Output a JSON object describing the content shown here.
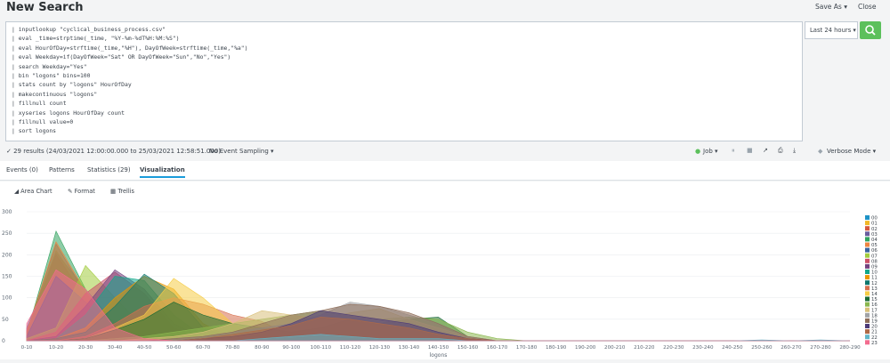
{
  "header": {
    "title": "New Search",
    "save_as": "Save As ▾",
    "close": "Close"
  },
  "search": {
    "lines": [
      "| inputlookup \"cyclical_business_process.csv\"",
      "| eval _time=strptime(_time, \"%Y-%m-%dT%H:%M:%S\")",
      "| eval HourOfDay=strftime(_time,\"%H\"), DayOfWeek=strftime(_time,\"%a\")",
      "| eval Weekday=if(DayOfWeek=\"Sat\" OR DayOfWeek=\"Sun\",\"No\",\"Yes\")",
      "| search Weekday=\"Yes\"",
      "| bin \"logons\" bins=100",
      "| stats count by \"logons\" HourOfDay",
      "| makecontinuous \"logons\"",
      "| fillnull count",
      "| xyseries logons HourOfDay count",
      "| fillnull value=0",
      "| sort logons"
    ],
    "time_range": "Last 24 hours ▾"
  },
  "status": {
    "results": "✓ 29 results (24/03/2021 12:00:00.000 to 25/03/2021 12:58:51.000)",
    "sampling": "No Event Sampling ▾",
    "job": "Job ▾",
    "mode": "Verbose Mode ▾"
  },
  "tabs": [
    {
      "label": "Events (0)"
    },
    {
      "label": "Patterns"
    },
    {
      "label": "Statistics (29)"
    },
    {
      "label": "Visualization"
    }
  ],
  "viz_toolbar": {
    "chart_type": "Area Chart",
    "format": "Format",
    "trellis": "Trellis"
  },
  "colors": {
    "accent_green": "#5cc05c",
    "active_tab": "#1a9cdb"
  },
  "chart_data": {
    "type": "area",
    "xlabel": "logons",
    "ylabel": "",
    "ylim": [
      0,
      300
    ],
    "yticks": [
      0,
      50,
      100,
      150,
      200,
      250,
      300
    ],
    "categories": [
      "0-10",
      "10-20",
      "20-30",
      "30-40",
      "40-50",
      "50-60",
      "60-70",
      "70-80",
      "80-90",
      "90-100",
      "100-110",
      "110-120",
      "120-130",
      "130-140",
      "140-150",
      "150-160",
      "160-170",
      "170-180",
      "180-190",
      "190-200",
      "200-210",
      "210-220",
      "220-230",
      "230-240",
      "240-250",
      "250-260",
      "260-270",
      "270-280",
      "280-290"
    ],
    "series": [
      {
        "name": "00",
        "color": "#1e93c6",
        "values": [
          30,
          205,
          120,
          40,
          5,
          0,
          0,
          0,
          0,
          0,
          0,
          0,
          0,
          0,
          0,
          0,
          0,
          0,
          0,
          0,
          0,
          0,
          0,
          0,
          0,
          0,
          0,
          0,
          0
        ]
      },
      {
        "name": "01",
        "color": "#f2b827",
        "values": [
          20,
          210,
          110,
          30,
          5,
          0,
          0,
          0,
          0,
          0,
          0,
          0,
          0,
          0,
          0,
          0,
          0,
          0,
          0,
          0,
          0,
          0,
          0,
          0,
          0,
          0,
          0,
          0,
          0
        ]
      },
      {
        "name": "02",
        "color": "#d6563c",
        "values": [
          25,
          200,
          100,
          30,
          5,
          0,
          0,
          0,
          0,
          0,
          0,
          0,
          0,
          0,
          0,
          0,
          0,
          0,
          0,
          0,
          0,
          0,
          0,
          0,
          0,
          0,
          0,
          0,
          0
        ]
      },
      {
        "name": "03",
        "color": "#6a5c9e",
        "values": [
          20,
          225,
          110,
          35,
          5,
          0,
          0,
          0,
          0,
          0,
          0,
          0,
          0,
          0,
          0,
          0,
          0,
          0,
          0,
          0,
          0,
          0,
          0,
          0,
          0,
          0,
          0,
          0,
          0
        ]
      },
      {
        "name": "04",
        "color": "#31a35f",
        "values": [
          15,
          255,
          120,
          30,
          5,
          0,
          0,
          0,
          0,
          0,
          0,
          0,
          0,
          0,
          0,
          0,
          0,
          0,
          0,
          0,
          0,
          0,
          0,
          0,
          0,
          0,
          0,
          0,
          0
        ]
      },
      {
        "name": "05",
        "color": "#ed8440",
        "values": [
          20,
          230,
          115,
          30,
          5,
          0,
          0,
          0,
          0,
          0,
          0,
          0,
          0,
          0,
          0,
          0,
          0,
          0,
          0,
          0,
          0,
          0,
          0,
          0,
          0,
          0,
          0,
          0,
          0
        ]
      },
      {
        "name": "06",
        "color": "#3863a0",
        "values": [
          10,
          150,
          90,
          20,
          0,
          0,
          0,
          0,
          0,
          0,
          0,
          0,
          0,
          0,
          0,
          0,
          0,
          0,
          0,
          0,
          0,
          0,
          0,
          0,
          0,
          0,
          0,
          0,
          0
        ]
      },
      {
        "name": "07",
        "color": "#a2cc3e",
        "values": [
          5,
          30,
          175,
          100,
          30,
          5,
          0,
          0,
          0,
          0,
          0,
          0,
          0,
          0,
          0,
          0,
          0,
          0,
          0,
          0,
          0,
          0,
          0,
          0,
          0,
          0,
          0,
          0,
          0
        ]
      },
      {
        "name": "08",
        "color": "#cc5068",
        "values": [
          0,
          20,
          110,
          160,
          110,
          30,
          5,
          0,
          0,
          0,
          0,
          0,
          0,
          0,
          0,
          0,
          0,
          0,
          0,
          0,
          0,
          0,
          0,
          0,
          0,
          0,
          0,
          0,
          0
        ]
      },
      {
        "name": "09",
        "color": "#73427f",
        "values": [
          0,
          10,
          80,
          165,
          120,
          40,
          5,
          0,
          0,
          0,
          0,
          0,
          0,
          0,
          0,
          0,
          0,
          0,
          0,
          0,
          0,
          0,
          0,
          0,
          0,
          0,
          0,
          0,
          0
        ]
      },
      {
        "name": "10",
        "color": "#11a88b",
        "values": [
          0,
          5,
          60,
          150,
          140,
          60,
          10,
          0,
          0,
          0,
          0,
          0,
          0,
          0,
          0,
          0,
          0,
          0,
          0,
          0,
          0,
          0,
          0,
          0,
          0,
          0,
          0,
          0,
          0
        ]
      },
      {
        "name": "11",
        "color": "#ea9600",
        "values": [
          0,
          5,
          30,
          100,
          150,
          120,
          40,
          5,
          0,
          0,
          0,
          0,
          0,
          0,
          0,
          0,
          0,
          0,
          0,
          0,
          0,
          0,
          0,
          0,
          0,
          0,
          0,
          0,
          0
        ]
      },
      {
        "name": "12",
        "color": "#0e776d",
        "values": [
          0,
          5,
          20,
          80,
          155,
          110,
          30,
          5,
          0,
          0,
          0,
          0,
          0,
          0,
          0,
          0,
          0,
          0,
          0,
          0,
          0,
          0,
          0,
          0,
          0,
          0,
          0,
          0,
          0
        ]
      },
      {
        "name": "13",
        "color": "#d76f4e",
        "values": [
          0,
          0,
          10,
          40,
          80,
          100,
          85,
          60,
          45,
          10,
          0,
          0,
          0,
          0,
          0,
          0,
          0,
          0,
          0,
          0,
          0,
          0,
          0,
          0,
          0,
          0,
          0,
          0,
          0
        ]
      },
      {
        "name": "14",
        "color": "#f5cc45",
        "values": [
          0,
          0,
          5,
          30,
          60,
          145,
          100,
          40,
          10,
          0,
          0,
          0,
          0,
          0,
          0,
          0,
          0,
          0,
          0,
          0,
          0,
          0,
          0,
          0,
          0,
          0,
          0,
          0,
          0
        ]
      },
      {
        "name": "15",
        "color": "#1a6a33",
        "values": [
          0,
          0,
          5,
          25,
          50,
          90,
          60,
          40,
          30,
          20,
          30,
          50,
          40,
          50,
          55,
          10,
          0,
          0,
          0,
          0,
          0,
          0,
          0,
          0,
          0,
          0,
          0,
          0,
          0
        ]
      },
      {
        "name": "16",
        "color": "#8ab74e",
        "values": [
          0,
          0,
          0,
          5,
          10,
          20,
          30,
          40,
          50,
          60,
          70,
          60,
          50,
          55,
          50,
          20,
          5,
          0,
          0,
          0,
          0,
          0,
          0,
          0,
          0,
          0,
          0,
          0,
          0
        ]
      },
      {
        "name": "17",
        "color": "#d9c07a",
        "values": [
          0,
          0,
          0,
          0,
          5,
          10,
          20,
          40,
          70,
          60,
          50,
          65,
          75,
          50,
          30,
          10,
          0,
          0,
          0,
          0,
          0,
          0,
          0,
          0,
          0,
          0,
          0,
          0,
          0
        ]
      },
      {
        "name": "18",
        "color": "#a1a3a6",
        "values": [
          0,
          0,
          0,
          0,
          0,
          5,
          10,
          20,
          30,
          40,
          60,
          90,
          80,
          60,
          40,
          10,
          0,
          0,
          0,
          0,
          0,
          0,
          0,
          0,
          0,
          0,
          0,
          0,
          0
        ]
      },
      {
        "name": "19",
        "color": "#8d6c58",
        "values": [
          0,
          0,
          0,
          0,
          0,
          5,
          10,
          20,
          40,
          60,
          70,
          85,
          80,
          65,
          40,
          10,
          0,
          0,
          0,
          0,
          0,
          0,
          0,
          0,
          0,
          0,
          0,
          0,
          0
        ]
      },
      {
        "name": "20",
        "color": "#4d3a78",
        "values": [
          0,
          0,
          0,
          0,
          0,
          0,
          5,
          10,
          20,
          40,
          70,
          60,
          50,
          40,
          20,
          5,
          0,
          0,
          0,
          0,
          0,
          0,
          0,
          0,
          0,
          0,
          0,
          0,
          0
        ]
      },
      {
        "name": "21",
        "color": "#b06a47",
        "values": [
          0,
          0,
          0,
          0,
          0,
          0,
          5,
          15,
          25,
          35,
          55,
          50,
          40,
          30,
          15,
          5,
          0,
          0,
          0,
          0,
          0,
          0,
          0,
          0,
          0,
          0,
          0,
          0,
          0
        ]
      },
      {
        "name": "22",
        "color": "#62b6c9",
        "values": [
          0,
          0,
          0,
          0,
          0,
          0,
          0,
          0,
          5,
          10,
          15,
          10,
          5,
          5,
          5,
          0,
          0,
          0,
          0,
          0,
          0,
          0,
          0,
          0,
          0,
          2,
          0,
          2,
          0
        ]
      },
      {
        "name": "23",
        "color": "#f36c8f",
        "values": [
          40,
          165,
          120,
          30,
          5,
          0,
          0,
          0,
          0,
          0,
          0,
          0,
          0,
          0,
          0,
          0,
          0,
          0,
          0,
          0,
          0,
          0,
          0,
          0,
          0,
          0,
          0,
          0,
          0
        ]
      }
    ]
  }
}
